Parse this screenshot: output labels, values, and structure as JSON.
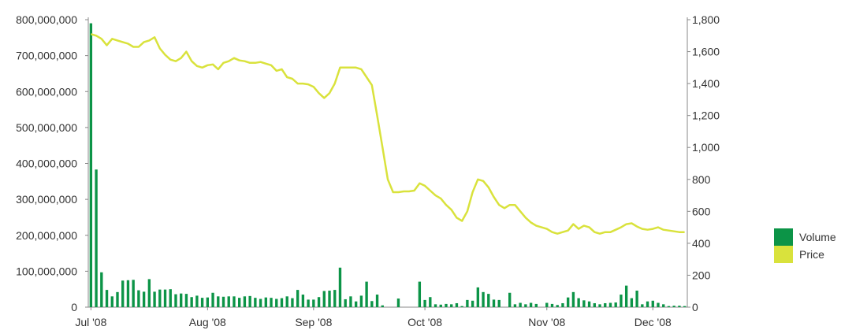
{
  "chart_data": {
    "type": "bar",
    "x_tick_labels": [
      "Jul '08",
      "Aug '08",
      "Sep '08",
      "Oct '08",
      "Nov '08",
      "Dec '08"
    ],
    "y_left_ticks": [
      "0",
      "100,000,000",
      "200,000,000",
      "300,000,000",
      "400,000,000",
      "500,000,000",
      "600,000,000",
      "700,000,000",
      "800,000,000"
    ],
    "y_right_ticks": [
      "0",
      "200",
      "400",
      "600",
      "800",
      "1,000",
      "1,200",
      "1,400",
      "1,600",
      "1,800"
    ],
    "ylim_left": [
      0,
      800000000
    ],
    "ylim_right": [
      0,
      1800
    ],
    "legend": {
      "position": "right",
      "items": [
        {
          "label": "Volume",
          "color": "#0c9447"
        },
        {
          "label": "Price",
          "color": "#d9e23c"
        }
      ]
    },
    "series": [
      {
        "name": "Volume",
        "type": "bar",
        "color": "#0c9447",
        "values": [
          790000000,
          383000000,
          97000000,
          48000000,
          30000000,
          42000000,
          74000000,
          75000000,
          76000000,
          47000000,
          43000000,
          78000000,
          43000000,
          49000000,
          49000000,
          50000000,
          36000000,
          38000000,
          37000000,
          28000000,
          32000000,
          26000000,
          27000000,
          40000000,
          30000000,
          29000000,
          30000000,
          30000000,
          26000000,
          30000000,
          31000000,
          26000000,
          23000000,
          27000000,
          26000000,
          23000000,
          25000000,
          30000000,
          25000000,
          48000000,
          35000000,
          21000000,
          21000000,
          28000000,
          45000000,
          46000000,
          48000000,
          110000000,
          22000000,
          30000000,
          16000000,
          32000000,
          71000000,
          17000000,
          35000000,
          5000000,
          0,
          0,
          24000000,
          0,
          0,
          0,
          71000000,
          20000000,
          28000000,
          8000000,
          7000000,
          9000000,
          8000000,
          11000000,
          3000000,
          20000000,
          18000000,
          55000000,
          42000000,
          37000000,
          21000000,
          20000000,
          0,
          40000000,
          8000000,
          12000000,
          8000000,
          12000000,
          9000000,
          0,
          12000000,
          9000000,
          6000000,
          11000000,
          27000000,
          42000000,
          25000000,
          19000000,
          16000000,
          11000000,
          8000000,
          11000000,
          12000000,
          13000000,
          35000000,
          60000000,
          25000000,
          46000000,
          8000000,
          16000000,
          18000000,
          12000000,
          8000000,
          3000000,
          4000000,
          4000000,
          3000000
        ]
      },
      {
        "name": "Price",
        "type": "line",
        "color": "#d9e23c",
        "values": [
          1710,
          1700,
          1680,
          1640,
          1680,
          1670,
          1660,
          1650,
          1630,
          1630,
          1660,
          1670,
          1690,
          1620,
          1580,
          1550,
          1540,
          1560,
          1600,
          1540,
          1510,
          1500,
          1515,
          1520,
          1490,
          1530,
          1540,
          1560,
          1545,
          1540,
          1530,
          1530,
          1535,
          1525,
          1515,
          1480,
          1490,
          1440,
          1430,
          1400,
          1400,
          1395,
          1380,
          1340,
          1310,
          1340,
          1400,
          1500,
          1500,
          1500,
          1500,
          1490,
          1440,
          1390,
          1200,
          1000,
          800,
          720,
          720,
          725,
          725,
          730,
          775,
          760,
          730,
          700,
          680,
          640,
          610,
          560,
          540,
          600,
          720,
          800,
          790,
          750,
          690,
          640,
          620,
          640,
          640,
          600,
          560,
          530,
          510,
          500,
          490,
          470,
          460,
          470,
          480,
          520,
          490,
          510,
          500,
          470,
          460,
          470,
          470,
          485,
          500,
          520,
          525,
          505,
          490,
          485,
          490,
          500,
          485,
          480,
          475,
          470,
          470
        ]
      }
    ]
  }
}
